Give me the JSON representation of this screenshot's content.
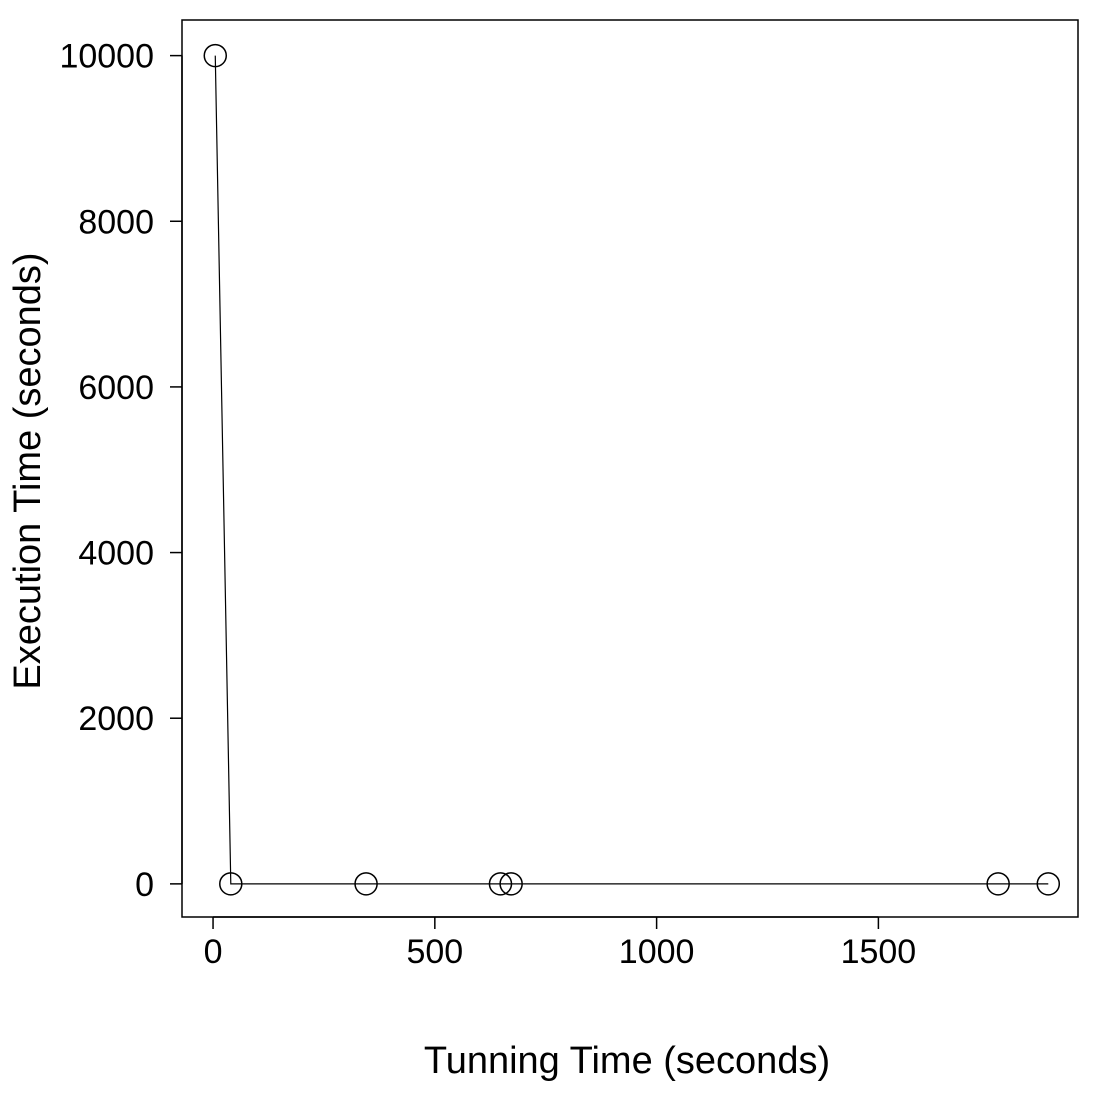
{
  "chart_data": {
    "type": "line",
    "title": "",
    "xlabel": "Tunning Time (seconds)",
    "ylabel": "Execution Time (seconds)",
    "xlim": [
      -70,
      1950
    ],
    "ylim": [
      -400,
      10430
    ],
    "xticks": [
      0,
      500,
      1000,
      1500
    ],
    "yticks": [
      0,
      2000,
      4000,
      6000,
      8000,
      10000
    ],
    "xtick_labels": [
      "0",
      "500",
      "1000",
      "1500"
    ],
    "ytick_labels": [
      "0",
      "2000",
      "4000",
      "6000",
      "8000",
      "10000"
    ],
    "grid": false,
    "marker": "open-circle",
    "series": [
      {
        "x": [
          5,
          40,
          345,
          648,
          672,
          1770,
          1883
        ],
        "y": [
          10000,
          0,
          0,
          0,
          0,
          0,
          0
        ]
      }
    ]
  }
}
